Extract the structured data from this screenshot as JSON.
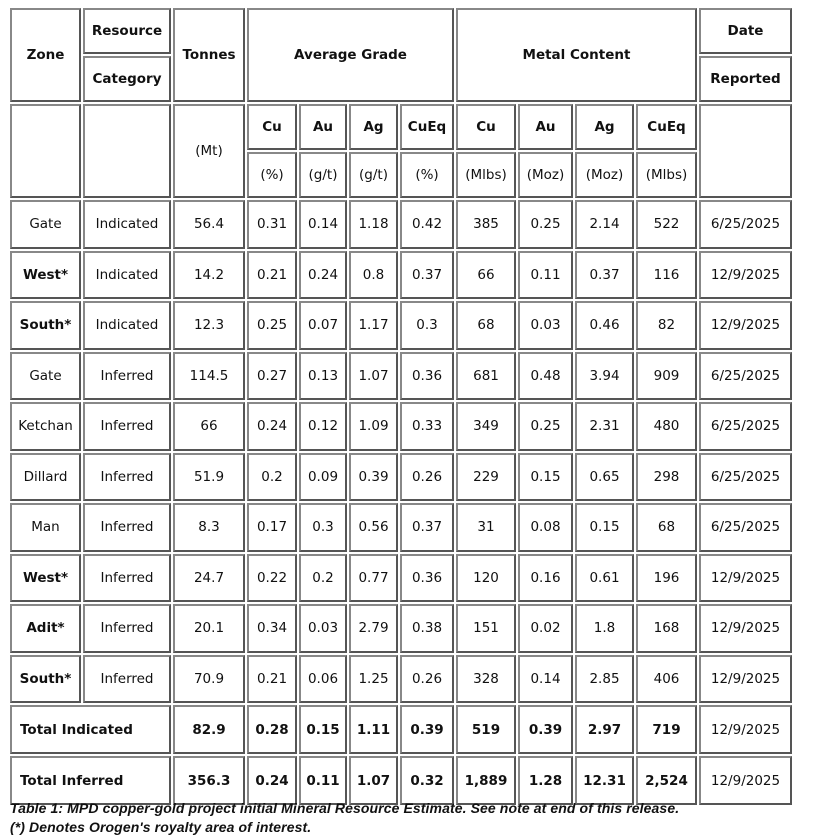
{
  "header": {
    "zone": "Zone",
    "resource": "Resource",
    "category": "Category",
    "tonnes": "Tonnes",
    "average_grade": "Average Grade",
    "metal_content": "Metal Content",
    "date": "Date",
    "reported": "Reported",
    "tonnes_unit": "(Mt)",
    "grade_cols": [
      {
        "name": "Cu",
        "unit": "(%)"
      },
      {
        "name": "Au",
        "unit": "(g/t)"
      },
      {
        "name": "Ag",
        "unit": "(g/t)"
      },
      {
        "name": "CuEq",
        "unit": "(%)"
      }
    ],
    "metal_cols": [
      {
        "name": "Cu",
        "unit": "(Mlbs)"
      },
      {
        "name": "Au",
        "unit": "(Moz)"
      },
      {
        "name": "Ag",
        "unit": "(Moz)"
      },
      {
        "name": "CuEq",
        "unit": "(Mlbs)"
      }
    ]
  },
  "rows": [
    {
      "zone": "Gate",
      "bold": false,
      "category": "Indicated",
      "tonnes": "56.4",
      "cu": "0.31",
      "au": "0.14",
      "ag": "1.18",
      "cueq": "0.42",
      "m_cu": "385",
      "m_au": "0.25",
      "m_ag": "2.14",
      "m_cueq": "522",
      "date": "6/25/2025"
    },
    {
      "zone": "West*",
      "bold": true,
      "category": "Indicated",
      "tonnes": "14.2",
      "cu": "0.21",
      "au": "0.24",
      "ag": "0.8",
      "cueq": "0.37",
      "m_cu": "66",
      "m_au": "0.11",
      "m_ag": "0.37",
      "m_cueq": "116",
      "date": "12/9/2025"
    },
    {
      "zone": "South*",
      "bold": true,
      "category": "Indicated",
      "tonnes": "12.3",
      "cu": "0.25",
      "au": "0.07",
      "ag": "1.17",
      "cueq": "0.3",
      "m_cu": "68",
      "m_au": "0.03",
      "m_ag": "0.46",
      "m_cueq": "82",
      "date": "12/9/2025"
    },
    {
      "zone": "Gate",
      "bold": false,
      "category": "Inferred",
      "tonnes": "114.5",
      "cu": "0.27",
      "au": "0.13",
      "ag": "1.07",
      "cueq": "0.36",
      "m_cu": "681",
      "m_au": "0.48",
      "m_ag": "3.94",
      "m_cueq": "909",
      "date": "6/25/2025"
    },
    {
      "zone": "Ketchan",
      "bold": false,
      "category": "Inferred",
      "tonnes": "66",
      "cu": "0.24",
      "au": "0.12",
      "ag": "1.09",
      "cueq": "0.33",
      "m_cu": "349",
      "m_au": "0.25",
      "m_ag": "2.31",
      "m_cueq": "480",
      "date": "6/25/2025"
    },
    {
      "zone": "Dillard",
      "bold": false,
      "category": "Inferred",
      "tonnes": "51.9",
      "cu": "0.2",
      "au": "0.09",
      "ag": "0.39",
      "cueq": "0.26",
      "m_cu": "229",
      "m_au": "0.15",
      "m_ag": "0.65",
      "m_cueq": "298",
      "date": "6/25/2025"
    },
    {
      "zone": "Man",
      "bold": false,
      "category": "Inferred",
      "tonnes": "8.3",
      "cu": "0.17",
      "au": "0.3",
      "ag": "0.56",
      "cueq": "0.37",
      "m_cu": "31",
      "m_au": "0.08",
      "m_ag": "0.15",
      "m_cueq": "68",
      "date": "6/25/2025"
    },
    {
      "zone": "West*",
      "bold": true,
      "category": "Inferred",
      "tonnes": "24.7",
      "cu": "0.22",
      "au": "0.2",
      "ag": "0.77",
      "cueq": "0.36",
      "m_cu": "120",
      "m_au": "0.16",
      "m_ag": "0.61",
      "m_cueq": "196",
      "date": "12/9/2025"
    },
    {
      "zone": "Adit*",
      "bold": true,
      "category": "Inferred",
      "tonnes": "20.1",
      "cu": "0.34",
      "au": "0.03",
      "ag": "2.79",
      "cueq": "0.38",
      "m_cu": "151",
      "m_au": "0.02",
      "m_ag": "1.8",
      "m_cueq": "168",
      "date": "12/9/2025"
    },
    {
      "zone": "South*",
      "bold": true,
      "category": "Inferred",
      "tonnes": "70.9",
      "cu": "0.21",
      "au": "0.06",
      "ag": "1.25",
      "cueq": "0.26",
      "m_cu": "328",
      "m_au": "0.14",
      "m_ag": "2.85",
      "m_cueq": "406",
      "date": "12/9/2025"
    }
  ],
  "totals": [
    {
      "label": "Total Indicated",
      "tonnes": "82.9",
      "cu": "0.28",
      "au": "0.15",
      "ag": "1.11",
      "cueq": "0.39",
      "m_cu": "519",
      "m_au": "0.39",
      "m_ag": "2.97",
      "m_cueq": "719",
      "date": "12/9/2025"
    },
    {
      "label": "Total Inferred",
      "tonnes": "356.3",
      "cu": "0.24",
      "au": "0.11",
      "ag": "1.07",
      "cueq": "0.32",
      "m_cu": "1,889",
      "m_au": "1.28",
      "m_ag": "12.31",
      "m_cueq": "2,524",
      "date": "12/9/2025"
    }
  ],
  "caption": {
    "line1": "Table 1: MPD copper-gold project initial Mineral Resource Estimate. See note at end of this release.",
    "line2": "(*) Denotes Orogen's royalty area of interest."
  }
}
